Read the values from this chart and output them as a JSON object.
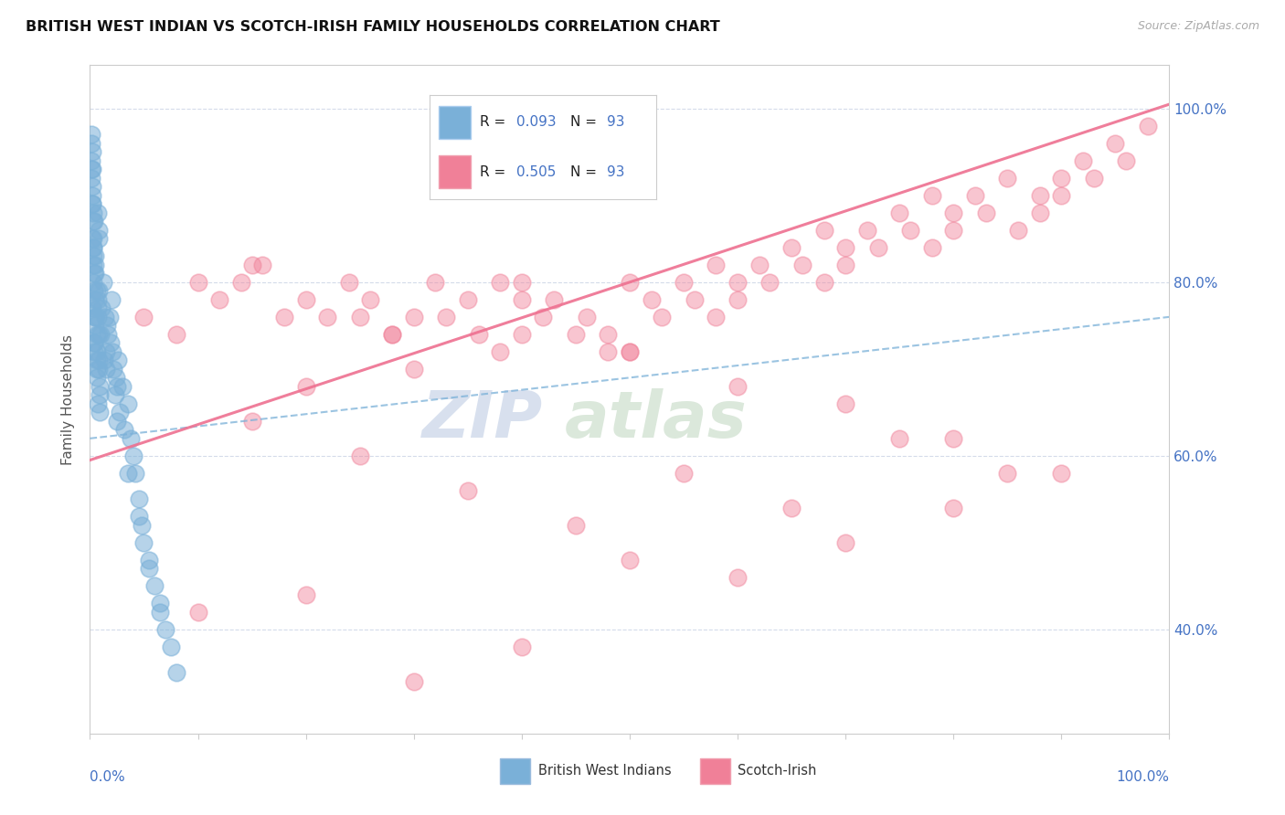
{
  "title": "BRITISH WEST INDIAN VS SCOTCH-IRISH FAMILY HOUSEHOLDS CORRELATION CHART",
  "source": "Source: ZipAtlas.com",
  "ylabel": "Family Households",
  "right_yticks": [
    "40.0%",
    "60.0%",
    "80.0%",
    "100.0%"
  ],
  "right_ytick_vals": [
    0.4,
    0.6,
    0.8,
    1.0
  ],
  "blue_R": 0.093,
  "pink_R": 0.505,
  "N": 93,
  "blue_color": "#7ab0d8",
  "pink_color": "#f08098",
  "blue_trend_color": "#7ab0d8",
  "pink_trend_color": "#ee7090",
  "background_color": "#ffffff",
  "grid_color": "#d0d8e8",
  "text_color_blue": "#4472c4",
  "xlim": [
    0.0,
    1.0
  ],
  "ylim": [
    0.28,
    1.05
  ],
  "watermark_zip_color": "#c8d4e8",
  "watermark_atlas_color": "#c8dcc8",
  "blue_x": [
    0.005,
    0.003,
    0.008,
    0.002,
    0.006,
    0.004,
    0.007,
    0.001,
    0.009,
    0.003,
    0.002,
    0.005,
    0.008,
    0.004,
    0.006,
    0.003,
    0.007,
    0.002,
    0.005,
    0.001,
    0.004,
    0.008,
    0.003,
    0.006,
    0.002,
    0.007,
    0.005,
    0.009,
    0.003,
    0.004,
    0.001,
    0.006,
    0.008,
    0.002,
    0.005,
    0.007,
    0.003,
    0.004,
    0.006,
    0.002,
    0.008,
    0.001,
    0.005,
    0.009,
    0.003,
    0.007,
    0.004,
    0.006,
    0.002,
    0.005,
    0.01,
    0.012,
    0.015,
    0.018,
    0.02,
    0.013,
    0.016,
    0.019,
    0.022,
    0.025,
    0.017,
    0.021,
    0.024,
    0.014,
    0.011,
    0.023,
    0.026,
    0.028,
    0.03,
    0.032,
    0.035,
    0.038,
    0.04,
    0.042,
    0.045,
    0.048,
    0.05,
    0.055,
    0.06,
    0.065,
    0.07,
    0.075,
    0.08,
    0.055,
    0.065,
    0.045,
    0.035,
    0.025,
    0.015,
    0.008,
    0.003,
    0.002,
    0.001
  ],
  "blue_y": [
    0.76,
    0.82,
    0.71,
    0.85,
    0.79,
    0.73,
    0.88,
    0.92,
    0.68,
    0.84,
    0.77,
    0.81,
    0.74,
    0.87,
    0.7,
    0.83,
    0.78,
    0.9,
    0.75,
    0.94,
    0.72,
    0.86,
    0.8,
    0.69,
    0.91,
    0.76,
    0.83,
    0.67,
    0.88,
    0.73,
    0.96,
    0.71,
    0.85,
    0.89,
    0.78,
    0.66,
    0.84,
    0.79,
    0.74,
    0.93,
    0.7,
    0.97,
    0.82,
    0.65,
    0.87,
    0.77,
    0.81,
    0.72,
    0.95,
    0.76,
    0.74,
    0.8,
    0.72,
    0.76,
    0.78,
    0.71,
    0.75,
    0.73,
    0.7,
    0.68,
    0.74,
    0.72,
    0.69,
    0.76,
    0.77,
    0.67,
    0.71,
    0.65,
    0.68,
    0.63,
    0.66,
    0.62,
    0.6,
    0.58,
    0.55,
    0.52,
    0.5,
    0.48,
    0.45,
    0.42,
    0.4,
    0.38,
    0.35,
    0.47,
    0.43,
    0.53,
    0.58,
    0.64,
    0.7,
    0.79,
    0.85,
    0.89,
    0.93
  ],
  "pink_x": [
    0.05,
    0.1,
    0.12,
    0.08,
    0.15,
    0.18,
    0.14,
    0.2,
    0.22,
    0.16,
    0.25,
    0.24,
    0.28,
    0.26,
    0.3,
    0.32,
    0.28,
    0.35,
    0.33,
    0.38,
    0.36,
    0.4,
    0.38,
    0.42,
    0.4,
    0.45,
    0.43,
    0.48,
    0.46,
    0.5,
    0.48,
    0.52,
    0.5,
    0.55,
    0.53,
    0.58,
    0.56,
    0.6,
    0.58,
    0.62,
    0.6,
    0.65,
    0.63,
    0.68,
    0.66,
    0.7,
    0.68,
    0.72,
    0.7,
    0.75,
    0.73,
    0.78,
    0.76,
    0.8,
    0.78,
    0.82,
    0.8,
    0.85,
    0.83,
    0.88,
    0.86,
    0.9,
    0.88,
    0.92,
    0.9,
    0.95,
    0.93,
    0.98,
    0.96,
    0.15,
    0.25,
    0.35,
    0.45,
    0.3,
    0.2,
    0.55,
    0.65,
    0.75,
    0.85,
    0.4,
    0.5,
    0.6,
    0.7,
    0.8,
    0.9,
    0.1,
    0.2,
    0.3,
    0.4,
    0.5,
    0.6,
    0.7,
    0.8
  ],
  "pink_y": [
    0.76,
    0.8,
    0.78,
    0.74,
    0.82,
    0.76,
    0.8,
    0.78,
    0.76,
    0.82,
    0.76,
    0.8,
    0.74,
    0.78,
    0.76,
    0.8,
    0.74,
    0.78,
    0.76,
    0.8,
    0.74,
    0.78,
    0.72,
    0.76,
    0.8,
    0.74,
    0.78,
    0.72,
    0.76,
    0.8,
    0.74,
    0.78,
    0.72,
    0.8,
    0.76,
    0.82,
    0.78,
    0.8,
    0.76,
    0.82,
    0.78,
    0.84,
    0.8,
    0.86,
    0.82,
    0.84,
    0.8,
    0.86,
    0.82,
    0.88,
    0.84,
    0.9,
    0.86,
    0.88,
    0.84,
    0.9,
    0.86,
    0.92,
    0.88,
    0.9,
    0.86,
    0.92,
    0.88,
    0.94,
    0.9,
    0.96,
    0.92,
    0.98,
    0.94,
    0.64,
    0.6,
    0.56,
    0.52,
    0.7,
    0.68,
    0.58,
    0.54,
    0.62,
    0.58,
    0.74,
    0.72,
    0.68,
    0.66,
    0.62,
    0.58,
    0.42,
    0.44,
    0.34,
    0.38,
    0.48,
    0.46,
    0.5,
    0.54
  ]
}
